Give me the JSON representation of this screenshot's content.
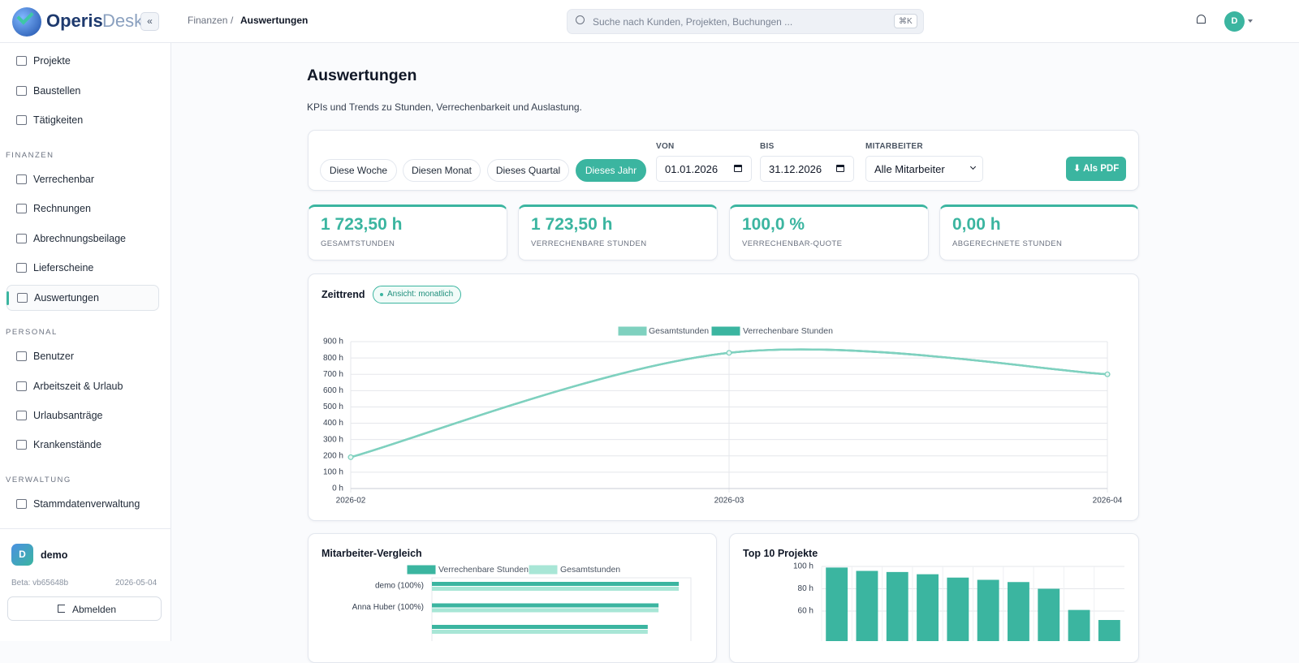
{
  "app": {
    "brand_a": "Operis",
    "brand_b": "Desk",
    "collapse": "«"
  },
  "breadcrumb": {
    "parent": "Finanzen",
    "sep": "/",
    "current": "Auswertungen"
  },
  "search": {
    "placeholder": "Suche nach Kunden, Projekten, Buchungen ...",
    "shortcut": "⌘K"
  },
  "user_avatar": "D",
  "sidebar": {
    "items_top": [
      "Projekte",
      "Baustellen",
      "Tätigkeiten"
    ],
    "sections": [
      {
        "title": "FINANZEN",
        "items": [
          "Verrechenbar",
          "Rechnungen",
          "Abrechnungsbeilage",
          "Lieferscheine",
          "Auswertungen"
        ]
      },
      {
        "title": "PERSONAL",
        "items": [
          "Benutzer",
          "Arbeitszeit & Urlaub",
          "Urlaubsanträge",
          "Krankenstände"
        ]
      },
      {
        "title": "VERWALTUNG",
        "items": [
          "Stammdatenverwaltung"
        ]
      }
    ],
    "active": "Auswertungen",
    "user": {
      "avatar": "D",
      "name": "demo"
    },
    "version": "Beta: vb65648b",
    "date": "2026-05-04",
    "logout": "Abmelden"
  },
  "page": {
    "title": "Auswertungen",
    "subtitle": "KPIs und Trends zu Stunden, Verrechenbarkeit und Auslastung.",
    "filters": [
      "Diese Woche",
      "Diesen Monat",
      "Dieses Quartal",
      "Dieses Jahr"
    ],
    "active_filter": "Dieses Jahr",
    "von_label": "VON",
    "von": "01.01.2026",
    "bis_label": "BIS",
    "bis": "31.12.2026",
    "mitarbeiter_label": "MITARBEITER",
    "mitarbeiter": "Alle Mitarbeiter",
    "pdf": "⬇ Als PDF"
  },
  "kpis": [
    {
      "value": "1 723,50 h",
      "label": "GESAMTSTUNDEN"
    },
    {
      "value": "1 723,50 h",
      "label": "VERRECHENBARE STUNDEN"
    },
    {
      "value": "100,0 %",
      "label": "VERRECHENBAR-QUOTE"
    },
    {
      "value": "0,00 h",
      "label": "ABGERECHNETE STUNDEN"
    }
  ],
  "chart_data": [
    {
      "type": "line",
      "title": "Zeittrend",
      "badge": "Ansicht: monatlich",
      "categories": [
        "2026-02",
        "2026-03",
        "2026-04"
      ],
      "series": [
        {
          "name": "Gesamtstunden",
          "color": "#7fd1bf",
          "values": [
            192,
            831.5,
            700
          ]
        },
        {
          "name": "Verrechenbare Stunden",
          "color": "#3bb5a0",
          "values": [
            192,
            831.5,
            700
          ]
        }
      ],
      "ylim": [
        0,
        900
      ],
      "yticks": [
        {
          "value": 0,
          "label": "0 h"
        },
        {
          "value": 100,
          "label": "100 h"
        },
        {
          "value": 200,
          "label": "200 h"
        },
        {
          "value": 300,
          "label": "300 h"
        },
        {
          "value": 400,
          "label": "400 h"
        },
        {
          "value": 500,
          "label": "500 h"
        },
        {
          "value": 600,
          "label": "600 h"
        },
        {
          "value": 700,
          "label": "700 h"
        },
        {
          "value": 800,
          "label": "800 h"
        },
        {
          "value": 900,
          "label": "900 h"
        }
      ],
      "grid": true,
      "legend": "top"
    },
    {
      "type": "hbar",
      "title": "Mitarbeiter-Vergleich",
      "categories": [
        "demo (100%)",
        "Anna Huber (100%)",
        null
      ],
      "series": [
        {
          "name": "Verrechenbare Stunden",
          "color": "#3bb5a0",
          "values": [
            572,
            525,
            500
          ]
        },
        {
          "name": "Gesamtstunden",
          "color": "#a8e6d6",
          "values": [
            572,
            525,
            500
          ]
        }
      ],
      "xlim": [
        0,
        600
      ],
      "legend": "top"
    },
    {
      "type": "bar",
      "title": "Top 10 Projekte",
      "categories": [
        null,
        null,
        null,
        null,
        null,
        null,
        null,
        null,
        null,
        null
      ],
      "values": [
        99,
        96,
        95,
        93,
        90,
        88,
        86,
        80,
        61,
        52
      ],
      "color": "#3bb5a0",
      "ylim": [
        0,
        100
      ],
      "yticks": [
        {
          "value": 60,
          "label": "60 h"
        },
        {
          "value": 80,
          "label": "80 h"
        },
        {
          "value": 100,
          "label": "100 h"
        }
      ],
      "grid": true
    }
  ]
}
